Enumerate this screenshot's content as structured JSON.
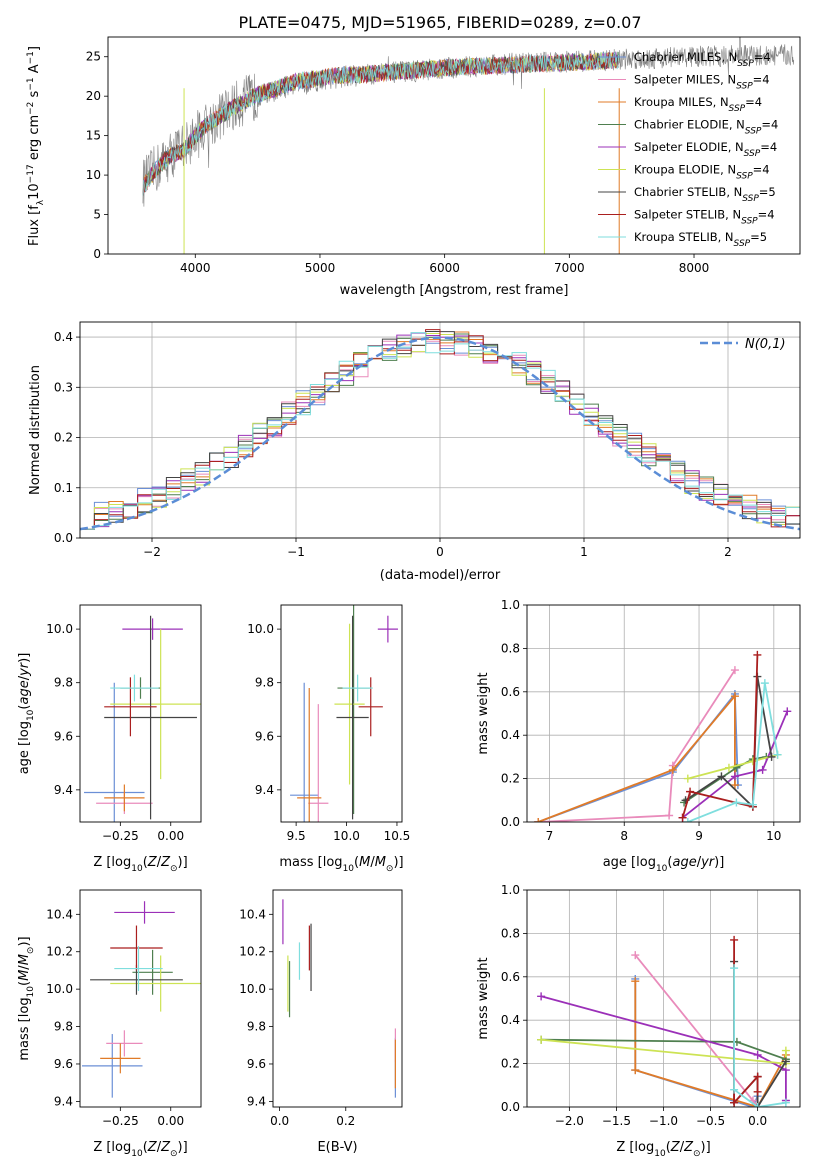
{
  "title": "PLATE=0475, MJD=51965, FIBERID=0289, z=0.07",
  "colors": {
    "chabrier_miles": "#6b8fd6",
    "salpeter_miles": "#e98bbb",
    "kroupa_miles": "#e07b28",
    "chabrier_elodie": "#4f7f4f",
    "salpeter_elodie": "#9b30b8",
    "kroupa_elodie": "#cde354",
    "chabrier_stelib": "#444444",
    "salpeter_stelib": "#aa1f1f",
    "kroupa_stelib": "#7fdede",
    "data_gray": "#808080",
    "gauss": "#5b8dd6"
  },
  "legend_spectrum": [
    {
      "label": "Chabrier MILES, N",
      "sub": "SSP",
      "tail": "=4",
      "color": "chabrier_miles"
    },
    {
      "label": "Salpeter MILES, N",
      "sub": "SSP",
      "tail": "=4",
      "color": "salpeter_miles"
    },
    {
      "label": "Kroupa MILES, N",
      "sub": "SSP",
      "tail": "=4",
      "color": "kroupa_miles"
    },
    {
      "label": "Chabrier ELODIE, N",
      "sub": "SSP",
      "tail": "=4",
      "color": "chabrier_elodie"
    },
    {
      "label": "Salpeter ELODIE, N",
      "sub": "SSP",
      "tail": "=4",
      "color": "salpeter_elodie"
    },
    {
      "label": "Kroupa ELODIE, N",
      "sub": "SSP",
      "tail": "=4",
      "color": "kroupa_elodie"
    },
    {
      "label": "Chabrier STELIB, N",
      "sub": "SSP",
      "tail": "=5",
      "color": "chabrier_stelib"
    },
    {
      "label": "Salpeter STELIB, N",
      "sub": "SSP",
      "tail": "=4",
      "color": "salpeter_stelib"
    },
    {
      "label": "Kroupa STELIB, N",
      "sub": "SSP",
      "tail": "=5",
      "color": "kroupa_stelib"
    }
  ],
  "chart_data": [
    {
      "id": "spectrum",
      "type": "line",
      "xlabel": "wavelength [Angstrom, rest frame]",
      "ylabel": "Flux [f_λ 10^-17 erg cm^-2 s^-1 A^-1]",
      "xlim": [
        3300,
        8850
      ],
      "ylim": [
        0,
        27.5
      ],
      "xticks": [
        4000,
        5000,
        6000,
        7000,
        8000
      ],
      "yticks": [
        0,
        5,
        10,
        15,
        20,
        25
      ],
      "grid": false,
      "legend": "top-right",
      "continuum": {
        "x": [
          3580,
          3700,
          3800,
          3900,
          4000,
          4100,
          4200,
          4300,
          4500,
          4800,
          5100,
          5400,
          5700,
          6000,
          6300,
          6600,
          6900,
          7200,
          7400
        ],
        "y": [
          8.5,
          11,
          12.5,
          13,
          15,
          16.5,
          17.5,
          18.5,
          20.2,
          21.8,
          22.6,
          22.8,
          23.2,
          23.6,
          23.8,
          24.0,
          24.2,
          24.4,
          24.6
        ]
      },
      "data_continuum": {
        "x": [
          3580,
          3700,
          3800,
          3900,
          4000,
          4200,
          4400,
          4800,
          5200,
          5600,
          6000,
          6400,
          6800,
          7200,
          7600,
          8000,
          8400,
          8800
        ],
        "y": [
          9,
          11,
          12.5,
          13.5,
          15,
          17.5,
          19.5,
          21.5,
          22.5,
          23,
          23.5,
          24,
          24.3,
          24.5,
          24.8,
          25,
          25.1,
          25.2
        ]
      },
      "dips": [
        {
          "x": 3910,
          "y": 0
        },
        {
          "x": 6800,
          "y": 0
        },
        {
          "x": 7400,
          "y": 0
        }
      ]
    },
    {
      "id": "residuals",
      "type": "step",
      "xlabel": "(data-model)/error",
      "ylabel": "Normed distribution",
      "xlim": [
        -2.5,
        2.5
      ],
      "ylim": [
        0,
        0.43
      ],
      "xticks": [
        -2,
        -1,
        0,
        1,
        2
      ],
      "yticks": [
        0,
        0.1,
        0.2,
        0.3,
        0.4
      ],
      "grid": true,
      "legend": "top-right",
      "gauss_label": "N(0,1)",
      "bin_width": 0.1
    },
    {
      "id": "age_vs_Z",
      "type": "errorbar",
      "xlabel": "Z [log10(Z/Z⊙)]",
      "ylabel": "age  [log10(age/yr)]",
      "xlim": [
        -0.45,
        0.15
      ],
      "ylim": [
        9.28,
        10.09
      ],
      "xticks": [
        -0.25,
        0.0
      ],
      "yticks": [
        9.4,
        9.6,
        9.8,
        10.0
      ],
      "points": [
        {
          "s": "chabrier_miles",
          "x": -0.28,
          "xe": 0.15,
          "y": 9.39,
          "ye": 0.41
        },
        {
          "s": "salpeter_miles",
          "x": -0.23,
          "xe": 0.14,
          "y": 9.35,
          "ye": 0.04
        },
        {
          "s": "kroupa_miles",
          "x": -0.23,
          "xe": 0.1,
          "y": 9.37,
          "ye": 0.05
        },
        {
          "s": "chabrier_elodie",
          "x": -0.15,
          "xe": 0.1,
          "y": 9.78,
          "ye": 0.04
        },
        {
          "s": "salpeter_elodie",
          "x": -0.09,
          "xe": 0.15,
          "y": 10.0,
          "ye": 0.04
        },
        {
          "s": "kroupa_elodie",
          "x": -0.05,
          "xe": 0.25,
          "y": 9.72,
          "ye": 0.28
        },
        {
          "s": "chabrier_stelib",
          "x": -0.1,
          "xe": 0.23,
          "y": 9.67,
          "ye": 0.38
        },
        {
          "s": "salpeter_stelib",
          "x": -0.2,
          "xe": 0.13,
          "y": 9.71,
          "ye": 0.11
        },
        {
          "s": "kroupa_stelib",
          "x": -0.18,
          "xe": 0.12,
          "y": 9.78,
          "ye": 0.05
        }
      ]
    },
    {
      "id": "age_vs_mass",
      "type": "errorbar",
      "xlabel": "mass [log10(M/M⊙)]",
      "ylabel": "",
      "xlim": [
        9.35,
        10.55
      ],
      "ylim": [
        9.28,
        10.09
      ],
      "xticks": [
        9.5,
        10.0,
        10.5
      ],
      "yticks": [
        9.4,
        9.6,
        9.8,
        10.0
      ],
      "points": [
        {
          "s": "chabrier_miles",
          "x": 9.58,
          "xe": 0.14,
          "y": 9.38,
          "ye": 0.42
        },
        {
          "s": "salpeter_miles",
          "x": 9.72,
          "xe": 0.1,
          "y": 9.35,
          "ye": 0.37
        },
        {
          "s": "kroupa_miles",
          "x": 9.63,
          "xe": 0.12,
          "y": 9.37,
          "ye": 0.41
        },
        {
          "s": "chabrier_elodie",
          "x": 10.07,
          "xe": 0.16,
          "y": 9.78,
          "ye": 0.47
        },
        {
          "s": "salpeter_elodie",
          "x": 10.41,
          "xe": 0.1,
          "y": 10.0,
          "ye": 0.05
        },
        {
          "s": "kroupa_elodie",
          "x": 10.03,
          "xe": 0.15,
          "y": 9.72,
          "ye": 0.3
        },
        {
          "s": "chabrier_stelib",
          "x": 10.06,
          "xe": 0.16,
          "y": 9.67,
          "ye": 0.38
        },
        {
          "s": "salpeter_stelib",
          "x": 10.24,
          "xe": 0.12,
          "y": 9.71,
          "ye": 0.11
        },
        {
          "s": "kroupa_stelib",
          "x": 10.11,
          "xe": 0.15,
          "y": 9.78,
          "ye": 0.05
        }
      ]
    },
    {
      "id": "weight_vs_age",
      "type": "line",
      "xlabel": "age  [log10(age/yr)]",
      "ylabel": "mass weight",
      "xlim": [
        6.7,
        10.35
      ],
      "ylim": [
        0,
        1.0
      ],
      "xticks": [
        7,
        8,
        9,
        10
      ],
      "yticks": [
        0.0,
        0.2,
        0.4,
        0.6,
        0.8,
        1.0
      ],
      "grid": true,
      "series": [
        {
          "s": "chabrier_miles",
          "x": [
            6.85,
            8.65,
            9.48,
            9.52
          ],
          "y": [
            0.0,
            0.23,
            0.59,
            0.17
          ]
        },
        {
          "s": "salpeter_miles",
          "x": [
            6.85,
            8.6,
            8.65,
            9.48
          ],
          "y": [
            0.0,
            0.03,
            0.26,
            0.7
          ]
        },
        {
          "s": "kroupa_miles",
          "x": [
            6.85,
            8.65,
            9.48,
            9.48
          ],
          "y": [
            0.0,
            0.24,
            0.58,
            0.17
          ]
        },
        {
          "s": "chabrier_elodie",
          "x": [
            8.8,
            9.5,
            9.72,
            9.9
          ],
          "y": [
            0.09,
            0.25,
            0.29,
            0.3
          ]
        },
        {
          "s": "salpeter_elodie",
          "x": [
            8.78,
            9.48,
            9.85,
            10.18
          ],
          "y": [
            0.02,
            0.21,
            0.24,
            0.51
          ]
        },
        {
          "s": "kroupa_elodie",
          "x": [
            8.85,
            9.4,
            9.72,
            10.05
          ],
          "y": [
            0.2,
            0.25,
            0.28,
            0.31
          ]
        },
        {
          "s": "chabrier_stelib",
          "x": [
            8.82,
            9.3,
            9.72,
            9.78,
            9.97
          ],
          "y": [
            0.1,
            0.21,
            0.07,
            0.67,
            0.3
          ]
        },
        {
          "s": "salpeter_stelib",
          "x": [
            8.78,
            8.88,
            9.72,
            9.78
          ],
          "y": [
            0.02,
            0.14,
            0.07,
            0.77
          ]
        },
        {
          "s": "kroupa_stelib",
          "x": [
            8.85,
            9.5,
            9.72,
            9.88,
            10.05
          ],
          "y": [
            0.0,
            0.09,
            0.08,
            0.64,
            0.31
          ]
        }
      ]
    },
    {
      "id": "mass_vs_Z",
      "type": "errorbar",
      "xlabel": "Z [log10(Z/Z⊙)]",
      "ylabel": "mass [log10(M/M⊙)]",
      "xlim": [
        -0.45,
        0.15
      ],
      "ylim": [
        9.37,
        10.53
      ],
      "xticks": [
        -0.25,
        0.0
      ],
      "yticks": [
        9.4,
        9.6,
        9.8,
        10.0,
        10.2,
        10.4
      ],
      "points": [
        {
          "s": "chabrier_miles",
          "x": -0.29,
          "xe": 0.15,
          "y": 9.59,
          "ye": 0.17
        },
        {
          "s": "salpeter_miles",
          "x": -0.23,
          "xe": 0.09,
          "y": 9.71,
          "ye": 0.07
        },
        {
          "s": "kroupa_miles",
          "x": -0.25,
          "xe": 0.1,
          "y": 9.63,
          "ye": 0.08
        },
        {
          "s": "chabrier_elodie",
          "x": -0.09,
          "xe": 0.1,
          "y": 10.09,
          "ye": 0.12
        },
        {
          "s": "salpeter_elodie",
          "x": -0.13,
          "xe": 0.15,
          "y": 10.41,
          "ye": 0.06
        },
        {
          "s": "kroupa_elodie",
          "x": -0.05,
          "xe": 0.25,
          "y": 10.03,
          "ye": 0.15
        },
        {
          "s": "chabrier_stelib",
          "x": -0.17,
          "xe": 0.23,
          "y": 10.05,
          "ye": 0.08
        },
        {
          "s": "salpeter_stelib",
          "x": -0.17,
          "xe": 0.13,
          "y": 10.22,
          "ye": 0.12
        },
        {
          "s": "kroupa_stelib",
          "x": -0.16,
          "xe": 0.12,
          "y": 10.11,
          "ye": 0.12
        }
      ]
    },
    {
      "id": "mass_vs_ebv",
      "type": "errorbar",
      "xlabel": "E(B-V)",
      "ylabel": "",
      "xlim": [
        -0.02,
        0.37
      ],
      "ylim": [
        9.37,
        10.53
      ],
      "xticks": [
        0.0,
        0.2
      ],
      "yticks": [
        9.4,
        9.6,
        9.8,
        10.0,
        10.2,
        10.4
      ],
      "points": [
        {
          "s": "chabrier_miles",
          "x": 0.35,
          "xe": 0,
          "y": 9.58,
          "ye": 0.16
        },
        {
          "s": "salpeter_miles",
          "x": 0.35,
          "xe": 0,
          "y": 9.7,
          "ye": 0.09
        },
        {
          "s": "kroupa_miles",
          "x": 0.35,
          "xe": 0,
          "y": 9.6,
          "ye": 0.13
        },
        {
          "s": "chabrier_elodie",
          "x": 0.03,
          "xe": 0,
          "y": 10.0,
          "ye": 0.15
        },
        {
          "s": "salpeter_elodie",
          "x": 0.01,
          "xe": 0,
          "y": 10.36,
          "ye": 0.12
        },
        {
          "s": "kroupa_elodie",
          "x": 0.025,
          "xe": 0,
          "y": 10.03,
          "ye": 0.15
        },
        {
          "s": "chabrier_stelib",
          "x": 0.095,
          "xe": 0,
          "y": 10.17,
          "ye": 0.18
        },
        {
          "s": "salpeter_stelib",
          "x": 0.09,
          "xe": 0,
          "y": 10.22,
          "ye": 0.12
        },
        {
          "s": "kroupa_stelib",
          "x": 0.06,
          "xe": 0,
          "y": 10.15,
          "ye": 0.1
        }
      ]
    },
    {
      "id": "weight_vs_Z",
      "type": "line",
      "xlabel": "Z [log10(Z/Z⊙)]",
      "ylabel": "mass weight",
      "xlim": [
        -2.45,
        0.45
      ],
      "ylim": [
        0,
        1.0
      ],
      "xticks": [
        -2.0,
        -1.5,
        -1.0,
        -0.5,
        0.0
      ],
      "yticks": [
        0.0,
        0.2,
        0.4,
        0.6,
        0.8,
        1.0
      ],
      "grid": true,
      "series": [
        {
          "s": "chabrier_miles",
          "x": [
            -1.3,
            -1.3,
            -0.05,
            0.0
          ],
          "y": [
            0.59,
            0.17,
            0.0,
            0.05
          ]
        },
        {
          "s": "salpeter_miles",
          "x": [
            -1.3,
            -0.05,
            0.0
          ],
          "y": [
            0.7,
            0.03,
            0.0
          ]
        },
        {
          "s": "kroupa_miles",
          "x": [
            -1.3,
            -1.3,
            0.0,
            0.3
          ],
          "y": [
            0.58,
            0.17,
            0.0,
            0.24
          ]
        },
        {
          "s": "chabrier_elodie",
          "x": [
            -2.3,
            -0.22,
            0.3
          ],
          "y": [
            0.31,
            0.3,
            0.22
          ]
        },
        {
          "s": "salpeter_elodie",
          "x": [
            -2.3,
            0.0,
            0.3,
            0.3
          ],
          "y": [
            0.51,
            0.24,
            0.17,
            0.03
          ]
        },
        {
          "s": "kroupa_elodie",
          "x": [
            -2.3,
            0.3,
            0.3
          ],
          "y": [
            0.31,
            0.2,
            0.26
          ]
        },
        {
          "s": "chabrier_stelib",
          "x": [
            -0.25,
            -0.25,
            0.0,
            0.0,
            0.3
          ],
          "y": [
            0.67,
            0.02,
            0.14,
            0.0,
            0.21
          ]
        },
        {
          "s": "salpeter_stelib",
          "x": [
            -0.25,
            -0.25,
            0.0,
            0.0
          ],
          "y": [
            0.77,
            0.02,
            0.14,
            0.07
          ]
        },
        {
          "s": "kroupa_stelib",
          "x": [
            -0.25,
            -0.25,
            0.0,
            0.3
          ],
          "y": [
            0.64,
            0.08,
            0.0,
            0.02
          ]
        }
      ]
    }
  ]
}
